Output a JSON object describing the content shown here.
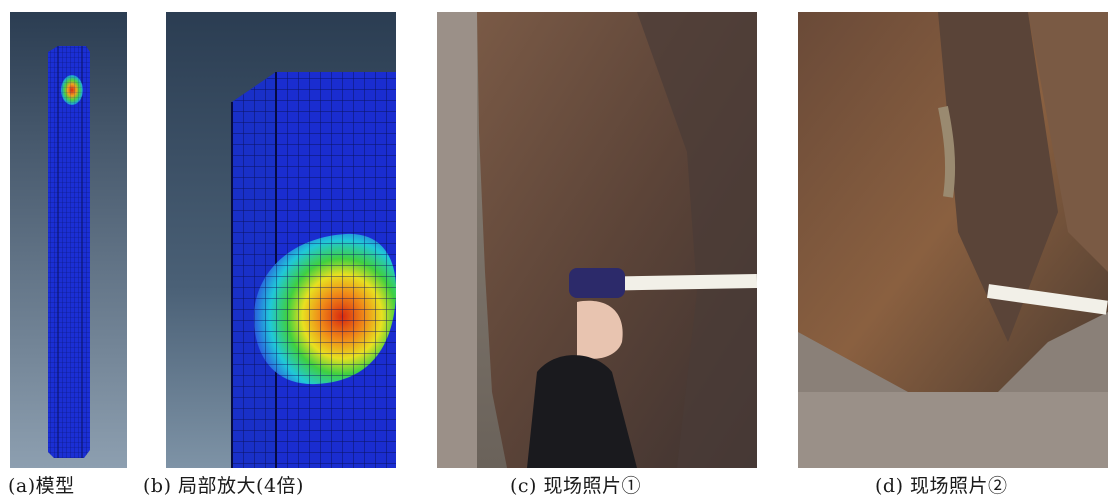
{
  "figure": {
    "captions": [
      "(a)模型",
      "(b) 局部放大(4倍)",
      "(c) 现场照片①",
      "(d) 现场照片②"
    ]
  }
}
